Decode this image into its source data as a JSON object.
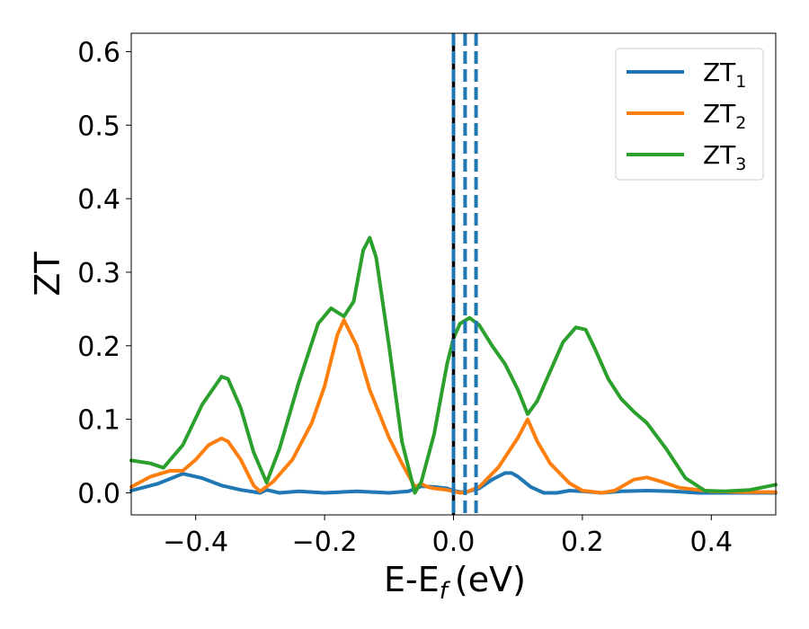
{
  "chart_data": {
    "type": "line",
    "xlabel_main": "E-E",
    "xlabel_sub": "f",
    "xlabel_unit": "(eV)",
    "ylabel": "ZT",
    "xlim": [
      -0.5,
      0.5
    ],
    "ylim": [
      -0.03,
      0.625
    ],
    "x_ticks": [
      -0.4,
      -0.2,
      0.0,
      0.2,
      0.4
    ],
    "x_tick_labels": [
      "−0.4",
      "−0.2",
      "0.0",
      "0.2",
      "0.4"
    ],
    "y_ticks": [
      0.0,
      0.1,
      0.2,
      0.3,
      0.4,
      0.5,
      0.6
    ],
    "y_tick_labels": [
      "0.0",
      "0.1",
      "0.2",
      "0.3",
      "0.4",
      "0.5",
      "0.6"
    ],
    "grid": false,
    "legend_position": "top-right",
    "vertical_lines": [
      {
        "x": 0.0,
        "color": "#000000",
        "style": "solid"
      },
      {
        "x": 0.0,
        "color": "#1f77b4",
        "style": "dashed"
      },
      {
        "x": 0.018,
        "color": "#1f77b4",
        "style": "dashed"
      },
      {
        "x": 0.035,
        "color": "#1f77b4",
        "style": "dashed"
      }
    ],
    "series": [
      {
        "name": "ZT",
        "sub": "1",
        "color": "#1f77b4",
        "points": [
          [
            -0.5,
            0.003
          ],
          [
            -0.46,
            0.012
          ],
          [
            -0.42,
            0.026
          ],
          [
            -0.39,
            0.02
          ],
          [
            -0.36,
            0.01
          ],
          [
            -0.33,
            0.004
          ],
          [
            -0.3,
            0.0
          ],
          [
            -0.29,
            0.004
          ],
          [
            -0.27,
            0.0
          ],
          [
            -0.24,
            0.002
          ],
          [
            -0.2,
            0.0
          ],
          [
            -0.15,
            0.002
          ],
          [
            -0.1,
            0.0
          ],
          [
            -0.07,
            0.002
          ],
          [
            -0.05,
            0.009
          ],
          [
            -0.03,
            0.008
          ],
          [
            -0.01,
            0.006
          ],
          [
            0.0,
            0.003
          ],
          [
            0.01,
            0.001
          ],
          [
            0.02,
            0.001
          ],
          [
            0.04,
            0.006
          ],
          [
            0.06,
            0.018
          ],
          [
            0.08,
            0.027
          ],
          [
            0.09,
            0.027
          ],
          [
            0.1,
            0.022
          ],
          [
            0.12,
            0.008
          ],
          [
            0.14,
            0.0
          ],
          [
            0.16,
            0.0
          ],
          [
            0.18,
            0.003
          ],
          [
            0.2,
            0.002
          ],
          [
            0.23,
            0.0
          ],
          [
            0.26,
            0.002
          ],
          [
            0.3,
            0.003
          ],
          [
            0.34,
            0.002
          ],
          [
            0.38,
            0.0
          ],
          [
            0.45,
            0.0
          ],
          [
            0.5,
            0.0
          ]
        ]
      },
      {
        "name": "ZT",
        "sub": "2",
        "color": "#ff7f0e",
        "points": [
          [
            -0.5,
            0.008
          ],
          [
            -0.47,
            0.022
          ],
          [
            -0.44,
            0.03
          ],
          [
            -0.42,
            0.03
          ],
          [
            -0.4,
            0.045
          ],
          [
            -0.38,
            0.065
          ],
          [
            -0.36,
            0.074
          ],
          [
            -0.35,
            0.07
          ],
          [
            -0.33,
            0.045
          ],
          [
            -0.31,
            0.01
          ],
          [
            -0.3,
            0.002
          ],
          [
            -0.28,
            0.015
          ],
          [
            -0.25,
            0.045
          ],
          [
            -0.22,
            0.095
          ],
          [
            -0.2,
            0.145
          ],
          [
            -0.18,
            0.215
          ],
          [
            -0.17,
            0.235
          ],
          [
            -0.15,
            0.2
          ],
          [
            -0.13,
            0.14
          ],
          [
            -0.1,
            0.075
          ],
          [
            -0.08,
            0.04
          ],
          [
            -0.06,
            0.008
          ],
          [
            -0.05,
            0.012
          ],
          [
            -0.04,
            0.008
          ],
          [
            -0.03,
            0.006
          ],
          [
            -0.01,
            0.004
          ],
          [
            0.0,
            0.002
          ],
          [
            0.01,
            0.0
          ],
          [
            0.02,
            0.001
          ],
          [
            0.04,
            0.008
          ],
          [
            0.07,
            0.035
          ],
          [
            0.1,
            0.075
          ],
          [
            0.115,
            0.1
          ],
          [
            0.13,
            0.07
          ],
          [
            0.15,
            0.04
          ],
          [
            0.18,
            0.013
          ],
          [
            0.2,
            0.003
          ],
          [
            0.23,
            0.0
          ],
          [
            0.25,
            0.003
          ],
          [
            0.28,
            0.018
          ],
          [
            0.3,
            0.021
          ],
          [
            0.32,
            0.016
          ],
          [
            0.35,
            0.007
          ],
          [
            0.4,
            0.002
          ],
          [
            0.45,
            0.001
          ],
          [
            0.5,
            0.001
          ]
        ]
      },
      {
        "name": "ZT",
        "sub": "3",
        "color": "#2ca02c",
        "points": [
          [
            -0.5,
            0.044
          ],
          [
            -0.47,
            0.04
          ],
          [
            -0.45,
            0.034
          ],
          [
            -0.42,
            0.065
          ],
          [
            -0.39,
            0.12
          ],
          [
            -0.36,
            0.158
          ],
          [
            -0.35,
            0.155
          ],
          [
            -0.33,
            0.115
          ],
          [
            -0.31,
            0.055
          ],
          [
            -0.29,
            0.014
          ],
          [
            -0.27,
            0.06
          ],
          [
            -0.24,
            0.15
          ],
          [
            -0.21,
            0.23
          ],
          [
            -0.19,
            0.251
          ],
          [
            -0.17,
            0.24
          ],
          [
            -0.155,
            0.26
          ],
          [
            -0.14,
            0.33
          ],
          [
            -0.13,
            0.347
          ],
          [
            -0.12,
            0.32
          ],
          [
            -0.1,
            0.2
          ],
          [
            -0.08,
            0.07
          ],
          [
            -0.06,
            0.0
          ],
          [
            -0.05,
            0.015
          ],
          [
            -0.03,
            0.08
          ],
          [
            -0.01,
            0.175
          ],
          [
            0.0,
            0.21
          ],
          [
            0.01,
            0.23
          ],
          [
            0.025,
            0.238
          ],
          [
            0.04,
            0.228
          ],
          [
            0.06,
            0.2
          ],
          [
            0.08,
            0.175
          ],
          [
            0.1,
            0.14
          ],
          [
            0.115,
            0.107
          ],
          [
            0.13,
            0.125
          ],
          [
            0.15,
            0.165
          ],
          [
            0.17,
            0.205
          ],
          [
            0.19,
            0.225
          ],
          [
            0.205,
            0.222
          ],
          [
            0.22,
            0.195
          ],
          [
            0.24,
            0.155
          ],
          [
            0.26,
            0.128
          ],
          [
            0.28,
            0.11
          ],
          [
            0.3,
            0.095
          ],
          [
            0.33,
            0.06
          ],
          [
            0.36,
            0.02
          ],
          [
            0.39,
            0.003
          ],
          [
            0.42,
            0.002
          ],
          [
            0.46,
            0.004
          ],
          [
            0.5,
            0.011
          ]
        ]
      }
    ]
  }
}
